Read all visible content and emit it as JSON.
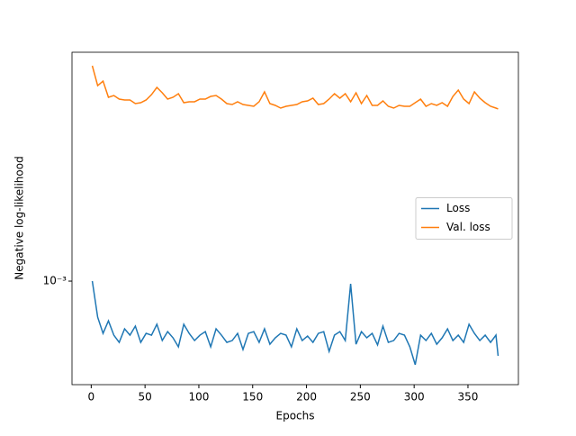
{
  "chart_data": {
    "type": "line",
    "xlabel": "Epochs",
    "ylabel": "Negative log-likelihood",
    "x": [
      1,
      6,
      11,
      16,
      21,
      26,
      31,
      36,
      41,
      46,
      51,
      56,
      61,
      66,
      71,
      76,
      81,
      86,
      91,
      96,
      101,
      106,
      111,
      116,
      121,
      126,
      131,
      136,
      141,
      146,
      151,
      156,
      161,
      166,
      171,
      176,
      181,
      186,
      191,
      196,
      201,
      206,
      211,
      216,
      221,
      226,
      231,
      236,
      241,
      246,
      251,
      256,
      261,
      266,
      271,
      276,
      281,
      286,
      291,
      296,
      301,
      306,
      311,
      316,
      321,
      326,
      331,
      336,
      341,
      346,
      351,
      356,
      361,
      366,
      371,
      376,
      378
    ],
    "series": [
      {
        "name": "Loss",
        "color": "#1f77b4",
        "values": [
          0.001,
          0.000794,
          0.000716,
          0.000776,
          0.000708,
          0.000676,
          0.000737,
          0.000708,
          0.00075,
          0.000676,
          0.000716,
          0.000708,
          0.000759,
          0.000684,
          0.000724,
          0.000696,
          0.000657,
          0.000759,
          0.000716,
          0.000684,
          0.000708,
          0.000724,
          0.000657,
          0.000737,
          0.000708,
          0.000676,
          0.000684,
          0.000716,
          0.000646,
          0.000716,
          0.000724,
          0.000676,
          0.000737,
          0.000668,
          0.000696,
          0.000716,
          0.000708,
          0.000657,
          0.000737,
          0.000684,
          0.000704,
          0.000676,
          0.000716,
          0.000724,
          0.000638,
          0.000708,
          0.000724,
          0.000684,
          0.000983,
          0.000668,
          0.000724,
          0.000696,
          0.000716,
          0.000665,
          0.00075,
          0.000676,
          0.000684,
          0.000716,
          0.000708,
          0.000657,
          0.000586,
          0.000708,
          0.000684,
          0.000716,
          0.000668,
          0.000696,
          0.000737,
          0.000684,
          0.000708,
          0.000676,
          0.000759,
          0.000716,
          0.000684,
          0.000708,
          0.000676,
          0.000708,
          0.00062
        ]
      },
      {
        "name": "Val. loss",
        "color": "#ff7f0e",
        "values": [
          0.003958,
          0.003487,
          0.003589,
          0.003236,
          0.003273,
          0.003199,
          0.003181,
          0.003181,
          0.003108,
          0.003126,
          0.003181,
          0.003292,
          0.003447,
          0.00333,
          0.003199,
          0.003236,
          0.003311,
          0.003126,
          0.003145,
          0.003145,
          0.003199,
          0.003199,
          0.003254,
          0.003273,
          0.003199,
          0.003108,
          0.00309,
          0.003145,
          0.00309,
          0.003073,
          0.003055,
          0.003145,
          0.00335,
          0.003108,
          0.003073,
          0.00302,
          0.003055,
          0.003073,
          0.00309,
          0.003145,
          0.003162,
          0.003218,
          0.00309,
          0.003108,
          0.003199,
          0.003311,
          0.003218,
          0.003311,
          0.003145,
          0.00333,
          0.003108,
          0.003273,
          0.003073,
          0.003073,
          0.003162,
          0.003055,
          0.00302,
          0.003073,
          0.003055,
          0.003055,
          0.003126,
          0.003199,
          0.003055,
          0.003108,
          0.003073,
          0.003126,
          0.003055,
          0.003254,
          0.003388,
          0.003199,
          0.003108,
          0.00335,
          0.003218,
          0.003126,
          0.003055,
          0.00302,
          0.003003
        ]
      }
    ],
    "xlim": [
      -17.85,
      396.85
    ],
    "xticks": [
      0,
      50,
      100,
      150,
      200,
      250,
      300,
      350
    ],
    "ylim": [
      0.000516,
      0.004315
    ],
    "yscale": "log",
    "yticks": [
      {
        "value": 0.001,
        "label": "10⁻³"
      }
    ],
    "legend": "center right"
  }
}
